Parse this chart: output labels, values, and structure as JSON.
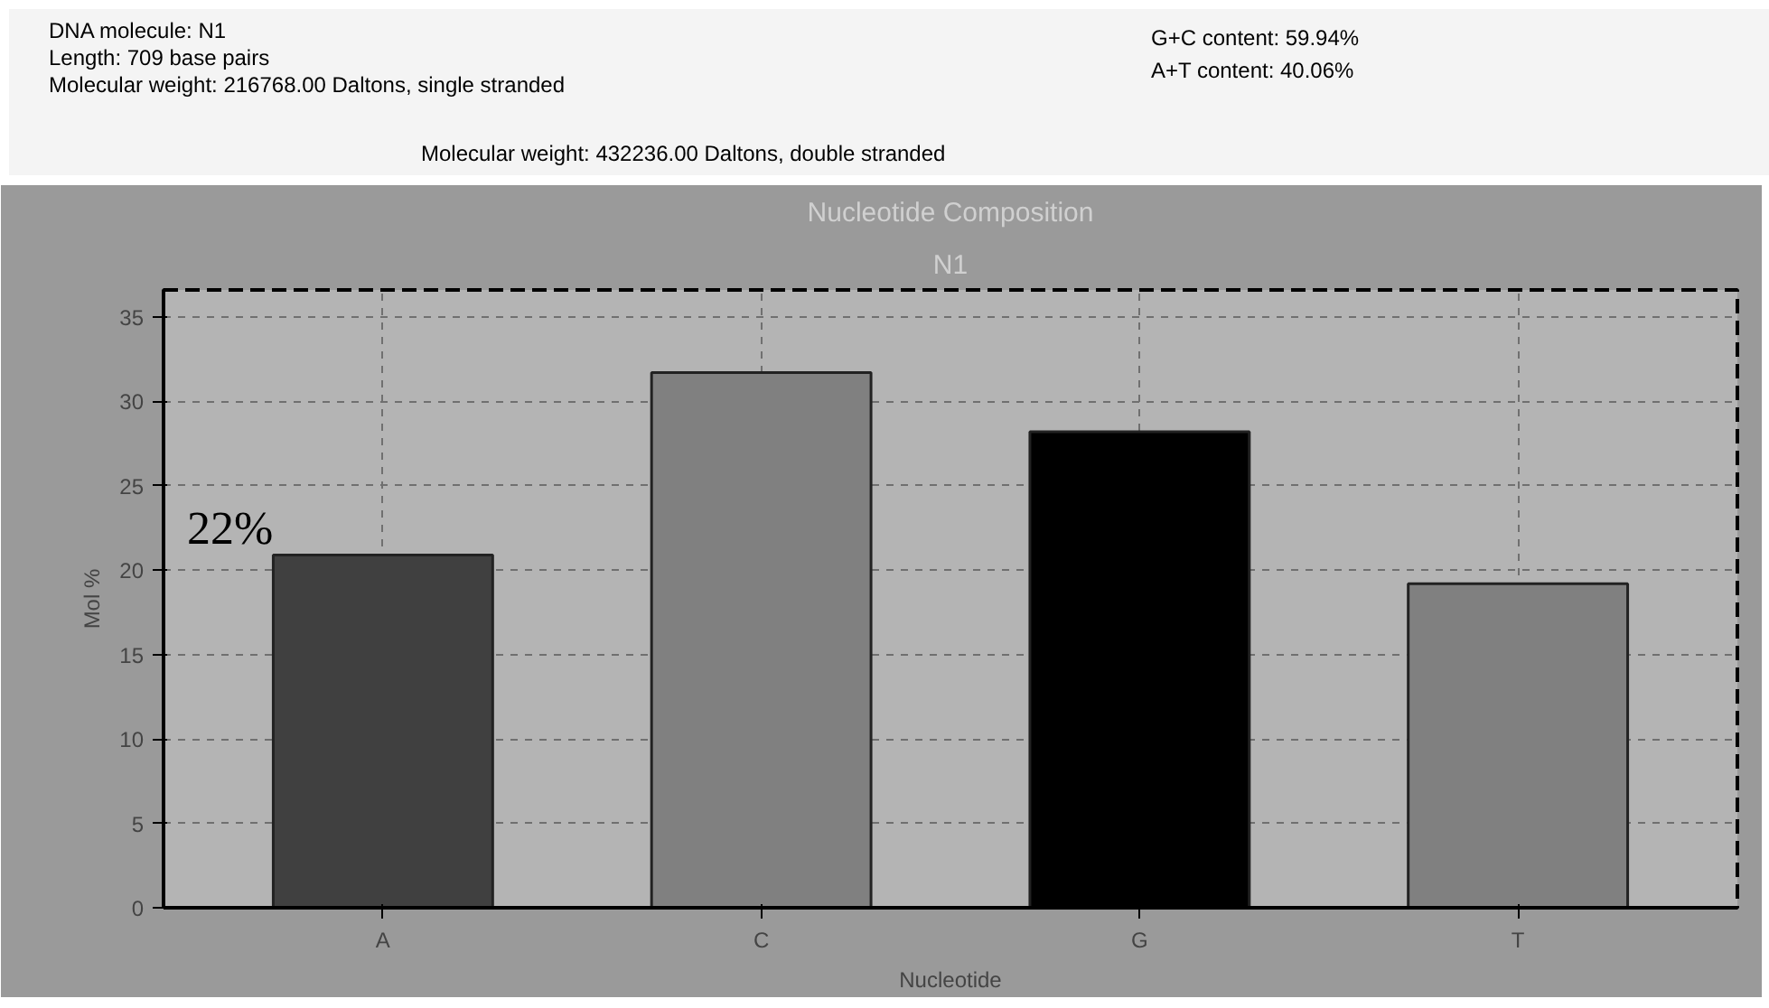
{
  "chart_data": {
    "type": "bar",
    "title": "Nucleotide Composition",
    "subtitle": "N1",
    "xlabel": "Nucleotide",
    "ylabel": "Mol %",
    "categories": [
      "A",
      "C",
      "G",
      "T"
    ],
    "values": [
      20.9,
      31.7,
      28.2,
      19.2
    ],
    "colors": [
      "#404040",
      "#808080",
      "#000000",
      "#808080"
    ],
    "ylim": [
      0,
      36.6
    ],
    "yticks": [
      0,
      5,
      10,
      15,
      20,
      25,
      30,
      35
    ],
    "grid": true,
    "annotations": [
      "DNA molecule: N1",
      "Length: 709 base pairs",
      "Molecular weight: 216768.00 Daltons, single stranded",
      "G+C content: 59.94%",
      "A+T content: 40.06%",
      "Molecular weight: 432236.00 Daltons, double stranded",
      {
        "text": "22%",
        "x": "A",
        "y": 20.9
      }
    ]
  }
}
